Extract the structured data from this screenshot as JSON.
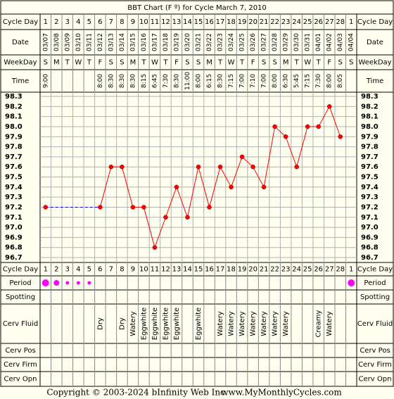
{
  "chart_data": {
    "type": "line",
    "title": "BBT Chart (F º) for Cycle March 7, 2010",
    "row_labels": {
      "cycle_day": "Cycle Day",
      "date": "Date",
      "weekday": "WeekDay",
      "time": "Time",
      "period": "Period",
      "spotting": "Spotting",
      "cerv_fluid": "Cerv Fluid",
      "cerv_pos": "Cerv Pos",
      "cerv_firm": "Cerv Firm",
      "cerv_opn": "Cerv Opn"
    },
    "cycle_days": [
      "1",
      "2",
      "3",
      "4",
      "5",
      "6",
      "7",
      "8",
      "9",
      "10",
      "11",
      "12",
      "13",
      "14",
      "15",
      "16",
      "17",
      "18",
      "19",
      "20",
      "21",
      "22",
      "23",
      "24",
      "25",
      "26",
      "27",
      "28",
      "1"
    ],
    "dates": [
      "03/07",
      "03/08",
      "03/09",
      "03/10",
      "03/11",
      "03/12",
      "03/13",
      "03/14",
      "03/15",
      "03/16",
      "03/17",
      "03/18",
      "03/19",
      "03/20",
      "03/21",
      "03/22",
      "03/23",
      "03/24",
      "03/25",
      "03/26",
      "03/27",
      "03/28",
      "03/29",
      "03/30",
      "03/31",
      "04/01",
      "04/02",
      "04/03",
      "04/04"
    ],
    "weekdays": [
      "S",
      "M",
      "T",
      "W",
      "T",
      "F",
      "S",
      "S",
      "M",
      "T",
      "W",
      "T",
      "F",
      "S",
      "S",
      "M",
      "T",
      "W",
      "T",
      "F",
      "S",
      "S",
      "M",
      "T",
      "W",
      "T",
      "F",
      "S",
      "S"
    ],
    "times": [
      "9:00",
      "",
      "",
      "",
      "",
      "8:00",
      "8:30",
      "8:30",
      "8:30",
      "8:15",
      "6:45",
      "7:30",
      "8:30",
      "11:00",
      "8:00",
      "6:15",
      "8:30",
      "7:15",
      "7:00",
      "7:10",
      "7:00",
      "8:00",
      "6:30",
      "5:45",
      "7:15",
      "7:30",
      "8:00",
      "8:05",
      ""
    ],
    "temperatures": [
      97.2,
      null,
      null,
      null,
      null,
      97.2,
      97.6,
      97.6,
      97.2,
      97.2,
      96.8,
      97.1,
      97.4,
      97.1,
      97.6,
      97.2,
      97.6,
      97.4,
      97.7,
      97.6,
      97.4,
      98.0,
      97.9,
      97.6,
      98.0,
      98.0,
      98.2,
      97.9,
      null
    ],
    "y_ticks": [
      "98.3",
      "98.2",
      "98.1",
      "98.0",
      "97.9",
      "97.8",
      "97.7",
      "97.6",
      "97.5",
      "97.4",
      "97.3",
      "97.2",
      "97.1",
      "97.0",
      "96.9",
      "96.8",
      "96.7"
    ],
    "ylim": [
      96.7,
      98.3
    ],
    "period": [
      "heavy",
      "medium",
      "light",
      "light",
      "light",
      "",
      "",
      "",
      "",
      "",
      "",
      "",
      "",
      "",
      "",
      "",
      "",
      "",
      "",
      "",
      "",
      "",
      "",
      "",
      "",
      "",
      "",
      "",
      "heavy"
    ],
    "cerv_fluid": [
      "",
      "",
      "",
      "",
      "",
      "Dry",
      "",
      "Dry",
      "Watery",
      "Eggwhite",
      "Eggwhite",
      "Eggwhite",
      "Eggwhite",
      "",
      "Eggwhite",
      "",
      "Watery",
      "Watery",
      "Watery",
      "Watery",
      "Watery",
      "Watery",
      "Watery",
      "",
      "",
      "Creamy",
      "Watery",
      "",
      ""
    ],
    "gap_fill": {
      "from_index": 0,
      "to_index": 5,
      "style": "dashed"
    },
    "colors": {
      "line": "#ff0000",
      "point": "#ff0000",
      "gap_line": "#0000ff",
      "period_dot": "#ff00ff",
      "grid": "#888888",
      "border": "#000000",
      "background": "#fffff0"
    },
    "grid": true
  },
  "footer": {
    "copyright": "Copyright © 2003-2024 bInfinity Web Inc.",
    "site": "www.MyMonthlyCycles.com"
  }
}
